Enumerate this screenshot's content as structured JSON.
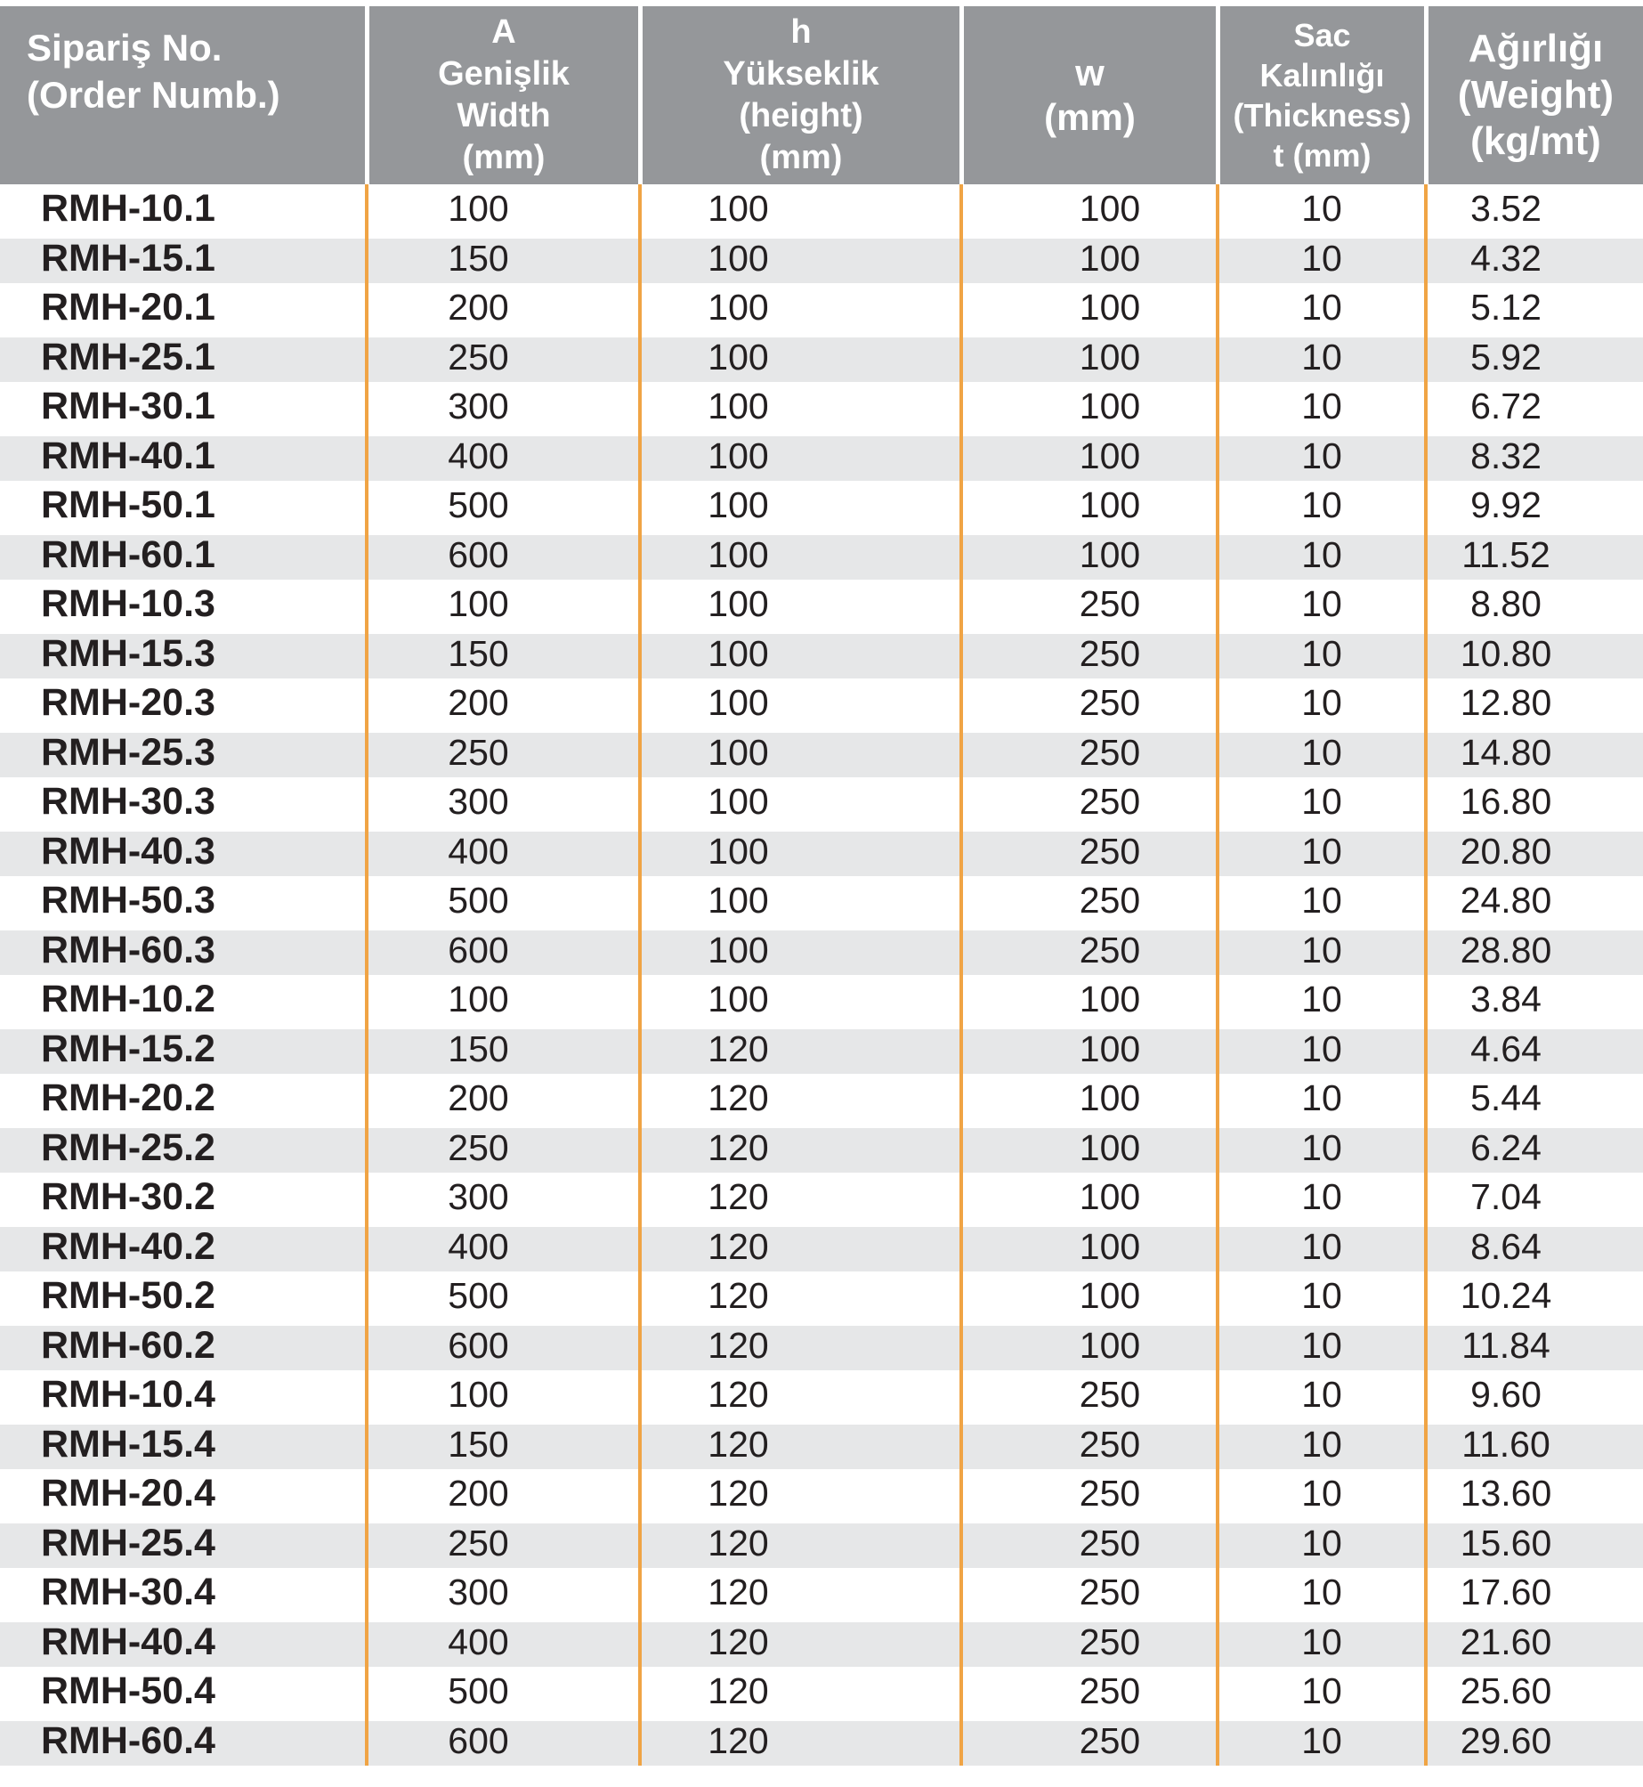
{
  "colors": {
    "header_bg": "#95979a",
    "stripe": "#e6e7e8",
    "divider_orange": "#f0a445",
    "text": "#231f20",
    "header_text": "#ffffff"
  },
  "table": {
    "header": {
      "col_order": [
        "Sipariş No.",
        "(Order Numb.)"
      ],
      "col_width": [
        "A",
        "Genişlik",
        "Width",
        "(mm)"
      ],
      "col_height": [
        "h",
        "Yükseklik",
        "(height)",
        "(mm)"
      ],
      "col_w": [
        "w",
        "(mm)"
      ],
      "col_thickness": [
        "Sac",
        "Kalınlığı",
        "(Thickness)",
        "t (mm)"
      ],
      "col_weight": [
        "Ağırlığı",
        "(Weight)",
        "(kg/mt)"
      ]
    },
    "rows": [
      {
        "order": "RMH-10.1",
        "a": "100",
        "h": "100",
        "w": "100",
        "t": "10",
        "weight": "3.52"
      },
      {
        "order": "RMH-15.1",
        "a": "150",
        "h": "100",
        "w": "100",
        "t": "10",
        "weight": "4.32"
      },
      {
        "order": "RMH-20.1",
        "a": "200",
        "h": "100",
        "w": "100",
        "t": "10",
        "weight": "5.12"
      },
      {
        "order": "RMH-25.1",
        "a": "250",
        "h": "100",
        "w": "100",
        "t": "10",
        "weight": "5.92"
      },
      {
        "order": "RMH-30.1",
        "a": "300",
        "h": "100",
        "w": "100",
        "t": "10",
        "weight": "6.72"
      },
      {
        "order": "RMH-40.1",
        "a": "400",
        "h": "100",
        "w": "100",
        "t": "10",
        "weight": "8.32"
      },
      {
        "order": "RMH-50.1",
        "a": "500",
        "h": "100",
        "w": "100",
        "t": "10",
        "weight": "9.92"
      },
      {
        "order": "RMH-60.1",
        "a": "600",
        "h": "100",
        "w": "100",
        "t": "10",
        "weight": "11.52"
      },
      {
        "order": "RMH-10.3",
        "a": "100",
        "h": "100",
        "w": "250",
        "t": "10",
        "weight": "8.80"
      },
      {
        "order": "RMH-15.3",
        "a": "150",
        "h": "100",
        "w": "250",
        "t": "10",
        "weight": "10.80"
      },
      {
        "order": "RMH-20.3",
        "a": "200",
        "h": "100",
        "w": "250",
        "t": "10",
        "weight": "12.80"
      },
      {
        "order": "RMH-25.3",
        "a": "250",
        "h": "100",
        "w": "250",
        "t": "10",
        "weight": "14.80"
      },
      {
        "order": "RMH-30.3",
        "a": "300",
        "h": "100",
        "w": "250",
        "t": "10",
        "weight": "16.80"
      },
      {
        "order": "RMH-40.3",
        "a": "400",
        "h": "100",
        "w": "250",
        "t": "10",
        "weight": "20.80"
      },
      {
        "order": "RMH-50.3",
        "a": "500",
        "h": "100",
        "w": "250",
        "t": "10",
        "weight": "24.80"
      },
      {
        "order": "RMH-60.3",
        "a": "600",
        "h": "100",
        "w": "250",
        "t": "10",
        "weight": "28.80"
      },
      {
        "order": "RMH-10.2",
        "a": "100",
        "h": "100",
        "w": "100",
        "t": "10",
        "weight": "3.84"
      },
      {
        "order": "RMH-15.2",
        "a": "150",
        "h": "120",
        "w": "100",
        "t": "10",
        "weight": "4.64"
      },
      {
        "order": "RMH-20.2",
        "a": "200",
        "h": "120",
        "w": "100",
        "t": "10",
        "weight": "5.44"
      },
      {
        "order": "RMH-25.2",
        "a": "250",
        "h": "120",
        "w": "100",
        "t": "10",
        "weight": "6.24"
      },
      {
        "order": "RMH-30.2",
        "a": "300",
        "h": "120",
        "w": "100",
        "t": "10",
        "weight": "7.04"
      },
      {
        "order": "RMH-40.2",
        "a": "400",
        "h": "120",
        "w": "100",
        "t": "10",
        "weight": "8.64"
      },
      {
        "order": "RMH-50.2",
        "a": "500",
        "h": "120",
        "w": "100",
        "t": "10",
        "weight": "10.24"
      },
      {
        "order": "RMH-60.2",
        "a": "600",
        "h": "120",
        "w": "100",
        "t": "10",
        "weight": "11.84"
      },
      {
        "order": "RMH-10.4",
        "a": "100",
        "h": "120",
        "w": "250",
        "t": "10",
        "weight": "9.60"
      },
      {
        "order": "RMH-15.4",
        "a": "150",
        "h": "120",
        "w": "250",
        "t": "10",
        "weight": "11.60"
      },
      {
        "order": "RMH-20.4",
        "a": "200",
        "h": "120",
        "w": "250",
        "t": "10",
        "weight": "13.60"
      },
      {
        "order": "RMH-25.4",
        "a": "250",
        "h": "120",
        "w": "250",
        "t": "10",
        "weight": "15.60"
      },
      {
        "order": "RMH-30.4",
        "a": "300",
        "h": "120",
        "w": "250",
        "t": "10",
        "weight": "17.60"
      },
      {
        "order": "RMH-40.4",
        "a": "400",
        "h": "120",
        "w": "250",
        "t": "10",
        "weight": "21.60"
      },
      {
        "order": "RMH-50.4",
        "a": "500",
        "h": "120",
        "w": "250",
        "t": "10",
        "weight": "25.60"
      },
      {
        "order": "RMH-60.4",
        "a": "600",
        "h": "120",
        "w": "250",
        "t": "10",
        "weight": "29.60"
      }
    ]
  }
}
